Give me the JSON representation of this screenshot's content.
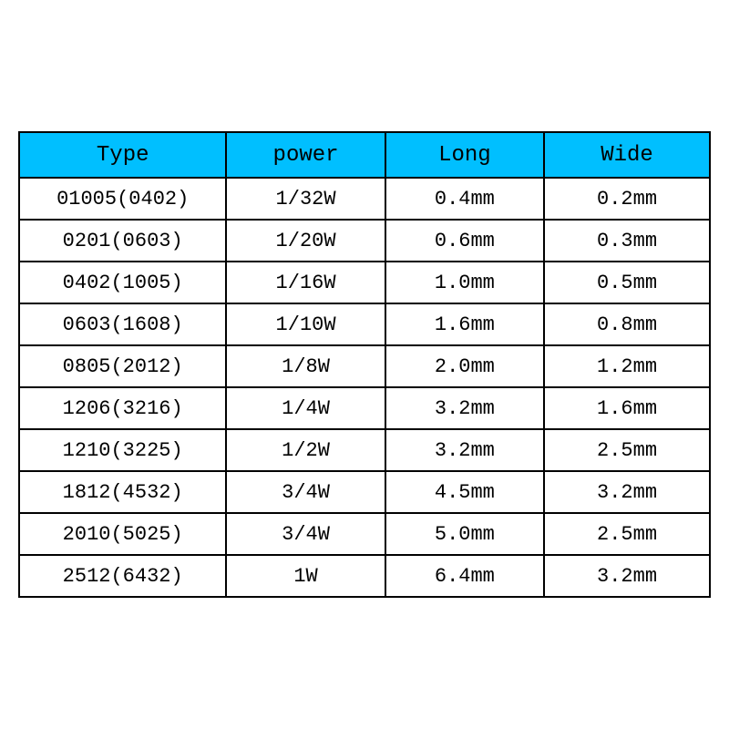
{
  "table": {
    "type": "table",
    "header_background_color": "#00bfff",
    "row_background_color": "#ffffff",
    "border_color": "#000000",
    "border_width": 2,
    "font_family": "Courier New",
    "header_fontsize": 24,
    "cell_fontsize": 22,
    "columns": [
      "Type",
      "power",
      "Long",
      "Wide"
    ],
    "column_widths_pct": [
      30,
      23,
      23,
      24
    ],
    "rows": [
      [
        "01005(0402)",
        "1/32W",
        "0.4mm",
        "0.2mm"
      ],
      [
        "0201(0603)",
        "1/20W",
        "0.6mm",
        "0.3mm"
      ],
      [
        "0402(1005)",
        "1/16W",
        "1.0mm",
        "0.5mm"
      ],
      [
        "0603(1608)",
        "1/10W",
        "1.6mm",
        "0.8mm"
      ],
      [
        "0805(2012)",
        "1/8W",
        "2.0mm",
        "1.2mm"
      ],
      [
        "1206(3216)",
        "1/4W",
        "3.2mm",
        "1.6mm"
      ],
      [
        "1210(3225)",
        "1/2W",
        "3.2mm",
        "2.5mm"
      ],
      [
        "1812(4532)",
        "3/4W",
        "4.5mm",
        "3.2mm"
      ],
      [
        "2010(5025)",
        "3/4W",
        "5.0mm",
        "2.5mm"
      ],
      [
        "2512(6432)",
        "1W",
        "6.4mm",
        "3.2mm"
      ]
    ]
  }
}
